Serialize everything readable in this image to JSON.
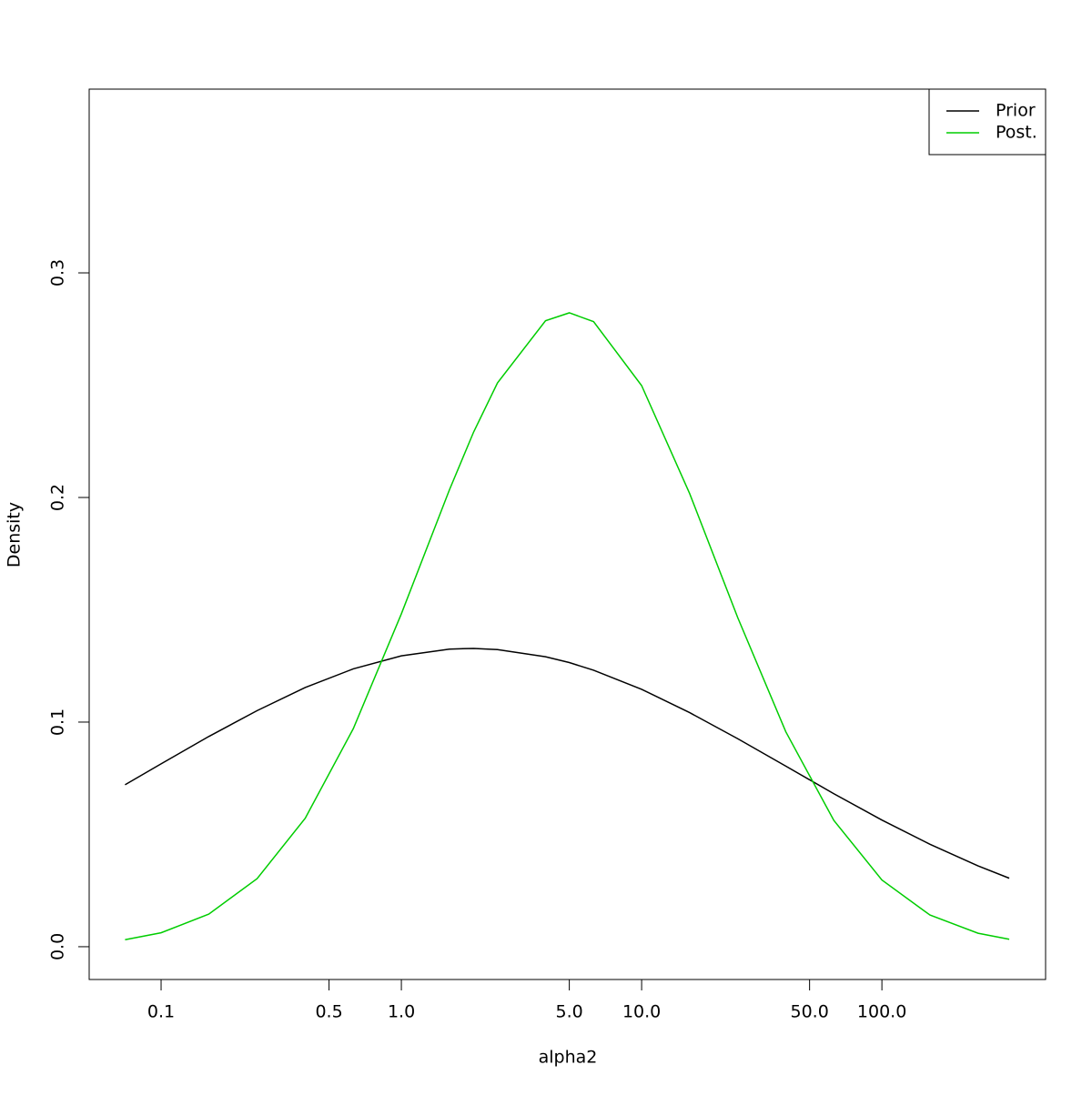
{
  "chart_data": {
    "type": "line",
    "xlabel": "alpha2",
    "ylabel": "Density",
    "xscale": "log",
    "x": [
      0.0708,
      0.1,
      0.158,
      0.251,
      0.398,
      0.631,
      1,
      1.585,
      2,
      2.512,
      3.981,
      5,
      6.31,
      10,
      15.85,
      25.12,
      39.81,
      63.1,
      100,
      158.5,
      251.2,
      338.8
    ],
    "series": [
      {
        "name": "Prior",
        "color": "#000000",
        "values": [
          0.0721,
          0.0814,
          0.0936,
          0.1051,
          0.1154,
          0.1237,
          0.1295,
          0.1325,
          0.1328,
          0.1323,
          0.1291,
          0.1265,
          0.1231,
          0.1146,
          0.1042,
          0.0926,
          0.0804,
          0.0681,
          0.0564,
          0.0456,
          0.036,
          0.0305
        ]
      },
      {
        "name": "Post.",
        "color": "#00cd00",
        "values": [
          0.0031,
          0.0062,
          0.0145,
          0.0303,
          0.0572,
          0.0971,
          0.1482,
          0.2034,
          0.2292,
          0.251,
          0.2787,
          0.2822,
          0.2783,
          0.2498,
          0.2017,
          0.1465,
          0.0957,
          0.0562,
          0.0297,
          0.0141,
          0.006,
          0.0033
        ]
      }
    ],
    "xlim": [
      0.0502,
      480
    ],
    "ylim": [
      -0.0146,
      0.3818
    ],
    "xticks": [
      0.1,
      {
        "value": 0.5,
        "label": "0.5"
      },
      {
        "value": 1,
        "label": "1.0"
      },
      {
        "value": 5,
        "label": "5.0"
      },
      {
        "value": 10,
        "label": "10.0"
      },
      {
        "value": 50,
        "label": "50.0"
      },
      {
        "value": 100,
        "label": "100.0"
      }
    ],
    "yticks": [
      {
        "value": 0,
        "label": "0.0"
      },
      0.1,
      0.2,
      0.3
    ],
    "legend": "top-right"
  }
}
